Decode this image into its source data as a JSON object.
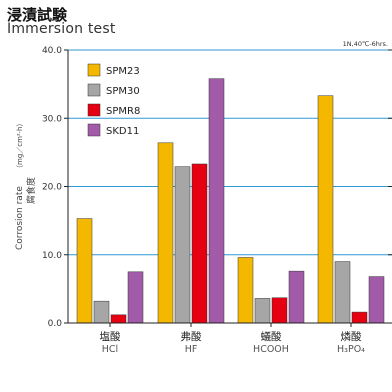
{
  "title_jp": "浸漬試験",
  "title_en": "Immersion test",
  "condition": "1N,40℃-6hrs.",
  "ylabel_en": "Corrosion rate",
  "ylabel_unit": "（mg／cm²·h）",
  "ylabel_jp": "腐食度",
  "chart_data": {
    "type": "bar",
    "title": "浸漬試験 Immersion test",
    "ylabel": "Corrosion rate (mg/cm²·h) 腐食度",
    "ylim": [
      0,
      40
    ],
    "yticks": [
      "0.0",
      "10.0",
      "20.0",
      "30.0",
      "40.0"
    ],
    "grid": true,
    "legend_position": "top-left",
    "categories": [
      {
        "jp": "塩酸",
        "en": "HCl"
      },
      {
        "jp": "弗酸",
        "en": "HF"
      },
      {
        "jp": "蟻酸",
        "en": "HCOOH"
      },
      {
        "jp": "燐酸",
        "en": "H₃PO₄"
      }
    ],
    "series": [
      {
        "name": "SPM23",
        "color": "#f5b800",
        "values": [
          15.3,
          26.4,
          9.6,
          33.3
        ]
      },
      {
        "name": "SPM30",
        "color": "#a6a6a6",
        "values": [
          3.2,
          22.9,
          3.6,
          9.0
        ]
      },
      {
        "name": "SPMR8",
        "color": "#e50012",
        "values": [
          1.2,
          23.3,
          3.7,
          1.6
        ]
      },
      {
        "name": "SKD11",
        "color": "#a25ba8",
        "values": [
          7.5,
          35.8,
          7.6,
          6.8
        ]
      }
    ],
    "gridline_color": "#2e9ad6"
  }
}
